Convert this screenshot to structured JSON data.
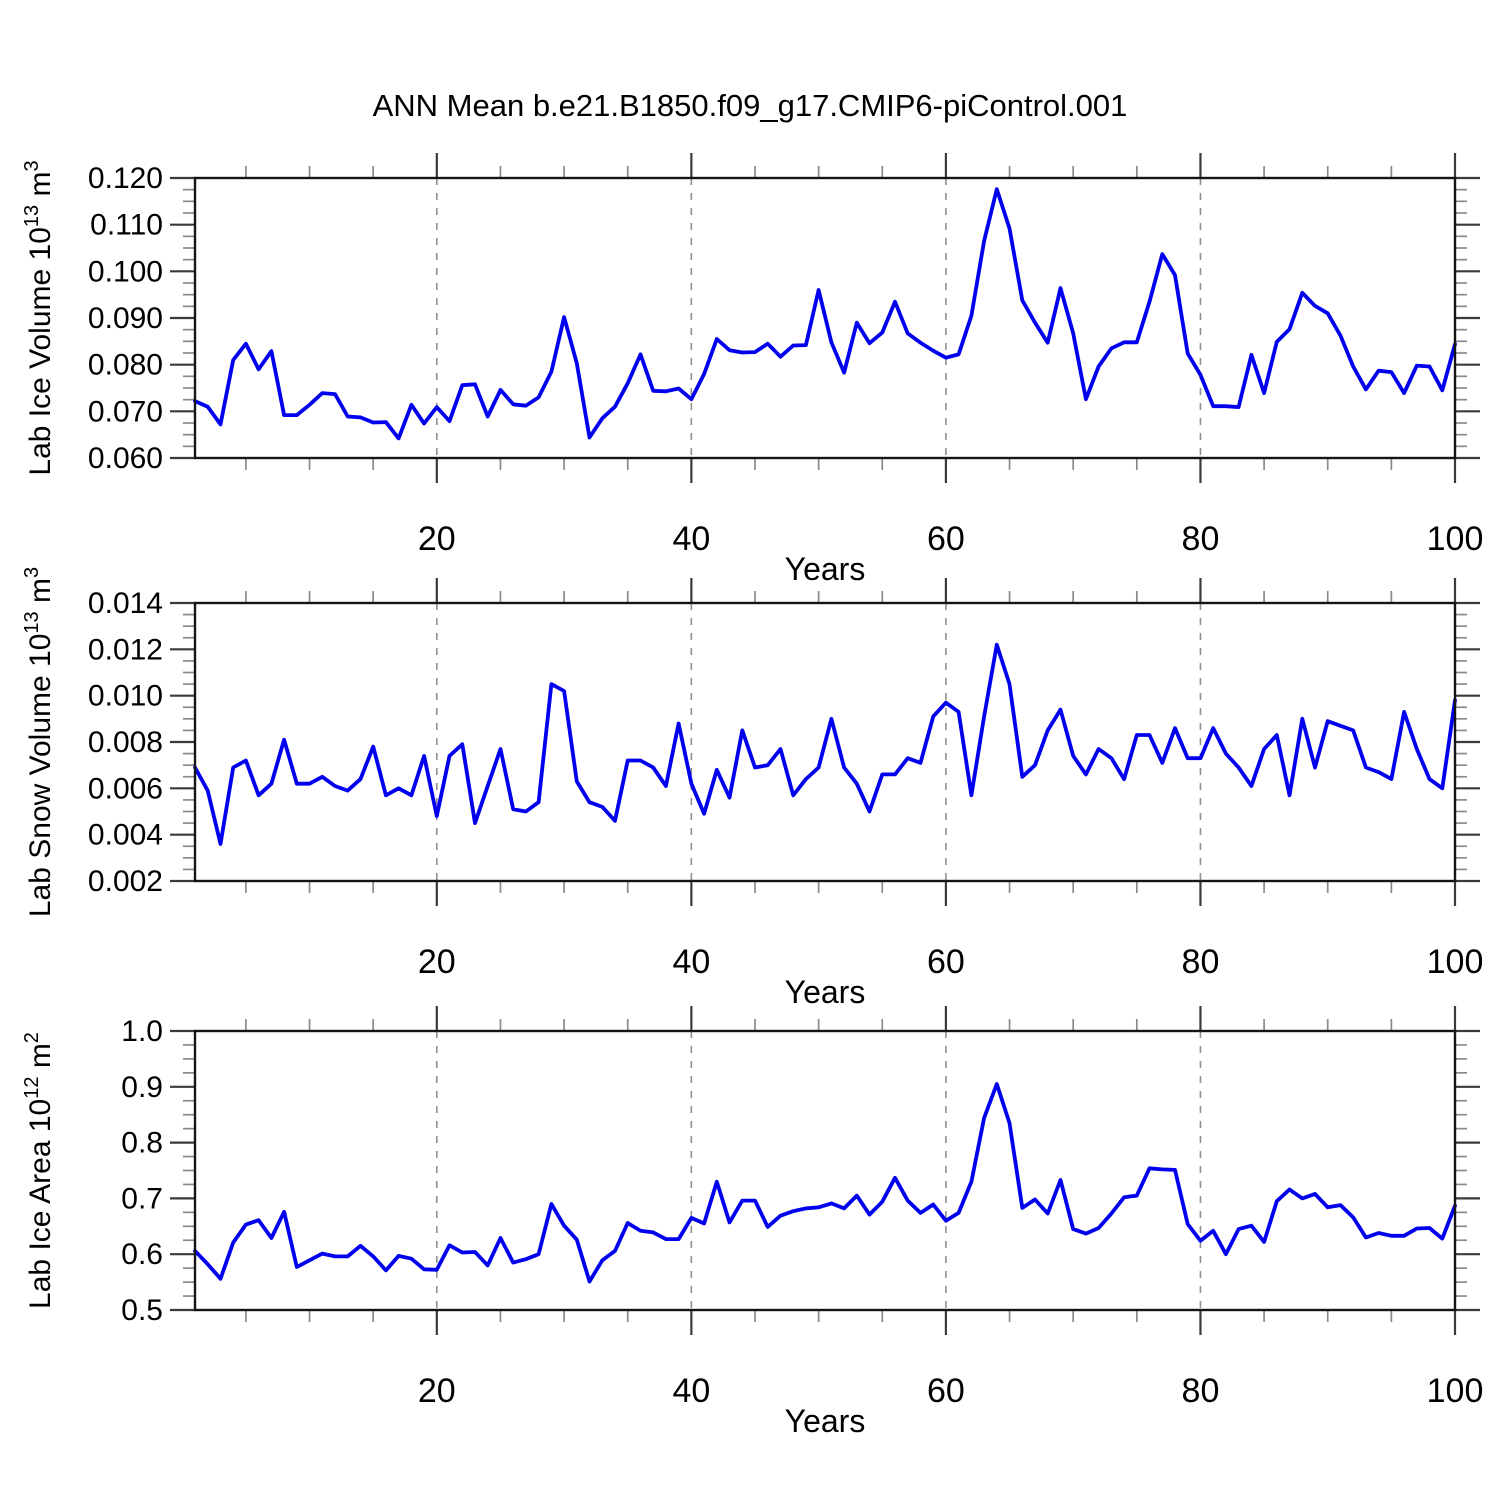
{
  "title": "ANN Mean b.e21.B1850.f09_g17.CMIP6-piControl.001",
  "line_color": "#0000EE",
  "chart_data": [
    {
      "type": "line",
      "panel_name": "panel-lab-ice-volume",
      "series_name": "lab-ice-volume-series",
      "title": "",
      "xlabel": "Years",
      "ylabel_plain": "Lab Ice Volume 10^13 m^3",
      "ylabel": {
        "text": "Lab Ice Volume",
        "scale": "10",
        "scale_exp": "13",
        "unit": "m",
        "unit_exp": "3"
      },
      "x_range": [
        1,
        100
      ],
      "x_start": 1,
      "x_step": 1,
      "x_major": [
        20,
        40,
        60,
        80,
        100
      ],
      "x_minor_step": 5,
      "grid_x": [
        20,
        40,
        60,
        80
      ],
      "y_range": [
        0.06,
        0.12
      ],
      "y_major_step": 0.01,
      "y_minor_div": 4,
      "y_decimals": 3,
      "values": [
        0.0722,
        0.071,
        0.0672,
        0.081,
        0.0845,
        0.079,
        0.0829,
        0.0692,
        0.0692,
        0.0714,
        0.0739,
        0.0737,
        0.0689,
        0.0687,
        0.0676,
        0.0677,
        0.0642,
        0.0714,
        0.0674,
        0.0709,
        0.0679,
        0.0756,
        0.0758,
        0.0689,
        0.0746,
        0.0715,
        0.0712,
        0.073,
        0.0785,
        0.0902,
        0.0803,
        0.0644,
        0.0685,
        0.071,
        0.076,
        0.0822,
        0.0744,
        0.0743,
        0.0749,
        0.0726,
        0.078,
        0.0855,
        0.0831,
        0.0826,
        0.0827,
        0.0845,
        0.0817,
        0.0841,
        0.0842,
        0.096,
        0.0848,
        0.0783,
        0.089,
        0.0846,
        0.0869,
        0.0935,
        0.0867,
        0.0847,
        0.083,
        0.0815,
        0.0822,
        0.0905,
        0.1065,
        0.1176,
        0.1092,
        0.0938,
        0.089,
        0.0847,
        0.0964,
        0.0867,
        0.0726,
        0.0796,
        0.0835,
        0.0848,
        0.0848,
        0.0935,
        0.1037,
        0.0992,
        0.0824,
        0.0778,
        0.0711,
        0.0711,
        0.0709,
        0.0821,
        0.0739,
        0.0849,
        0.0876,
        0.0954,
        0.0926,
        0.091,
        0.0862,
        0.0796,
        0.0747,
        0.0787,
        0.0784,
        0.0739,
        0.0798,
        0.0796,
        0.0745,
        0.0844
      ]
    },
    {
      "type": "line",
      "panel_name": "panel-lab-snow-volume",
      "series_name": "lab-snow-volume-series",
      "title": "",
      "xlabel": "Years",
      "ylabel_plain": "Lab Snow Volume 10^13 m^3",
      "ylabel": {
        "text": "Lab Snow Volume",
        "scale": "10",
        "scale_exp": "13",
        "unit": "m",
        "unit_exp": "3"
      },
      "x_range": [
        1,
        100
      ],
      "x_start": 1,
      "x_step": 1,
      "x_major": [
        20,
        40,
        60,
        80,
        100
      ],
      "x_minor_step": 5,
      "grid_x": [
        20,
        40,
        60,
        80
      ],
      "y_range": [
        0.002,
        0.014
      ],
      "y_major_step": 0.002,
      "y_minor_div": 4,
      "y_decimals": 3,
      "values": [
        0.0069,
        0.0059,
        0.0036,
        0.0069,
        0.0072,
        0.0057,
        0.0062,
        0.0081,
        0.0062,
        0.0062,
        0.0065,
        0.0061,
        0.0059,
        0.0064,
        0.0078,
        0.0057,
        0.006,
        0.0057,
        0.0074,
        0.0048,
        0.0074,
        0.0079,
        0.0045,
        0.0061,
        0.0077,
        0.0051,
        0.005,
        0.0054,
        0.0105,
        0.0102,
        0.0063,
        0.0054,
        0.0052,
        0.0046,
        0.0072,
        0.0072,
        0.0069,
        0.0061,
        0.0088,
        0.0062,
        0.0049,
        0.0068,
        0.0056,
        0.0085,
        0.0069,
        0.007,
        0.0077,
        0.0057,
        0.0064,
        0.0069,
        0.009,
        0.0069,
        0.0062,
        0.005,
        0.0066,
        0.0066,
        0.0073,
        0.0071,
        0.0091,
        0.0097,
        0.0093,
        0.0057,
        0.0091,
        0.0122,
        0.0105,
        0.0065,
        0.007,
        0.0085,
        0.0094,
        0.0074,
        0.0066,
        0.0077,
        0.0073,
        0.0064,
        0.0083,
        0.0083,
        0.0071,
        0.0086,
        0.0073,
        0.0073,
        0.0086,
        0.0075,
        0.0069,
        0.0061,
        0.0077,
        0.0083,
        0.0057,
        0.009,
        0.0069,
        0.0089,
        0.0087,
        0.0085,
        0.0069,
        0.0067,
        0.0064,
        0.0093,
        0.0077,
        0.0064,
        0.006,
        0.0098
      ]
    },
    {
      "type": "line",
      "panel_name": "panel-lab-ice-area",
      "series_name": "lab-ice-area-series",
      "title": "",
      "xlabel": "Years",
      "ylabel_plain": "Lab Ice Area 10^12 m^2",
      "ylabel": {
        "text": "Lab Ice Area",
        "scale": "10",
        "scale_exp": "12",
        "unit": "m",
        "unit_exp": "2"
      },
      "x_range": [
        1,
        100
      ],
      "x_start": 1,
      "x_step": 1,
      "x_major": [
        20,
        40,
        60,
        80,
        100
      ],
      "x_minor_step": 5,
      "grid_x": [
        20,
        40,
        60,
        80
      ],
      "y_range": [
        0.5,
        1.0
      ],
      "y_major_step": 0.1,
      "y_minor_div": 4,
      "y_decimals": 1,
      "values": [
        0.606,
        0.582,
        0.556,
        0.621,
        0.653,
        0.661,
        0.629,
        0.676,
        0.577,
        0.589,
        0.601,
        0.596,
        0.596,
        0.615,
        0.596,
        0.571,
        0.597,
        0.592,
        0.573,
        0.572,
        0.616,
        0.603,
        0.604,
        0.58,
        0.629,
        0.585,
        0.591,
        0.6,
        0.69,
        0.651,
        0.626,
        0.551,
        0.589,
        0.606,
        0.656,
        0.642,
        0.639,
        0.627,
        0.627,
        0.665,
        0.655,
        0.73,
        0.657,
        0.696,
        0.696,
        0.649,
        0.669,
        0.677,
        0.682,
        0.684,
        0.691,
        0.682,
        0.705,
        0.671,
        0.694,
        0.737,
        0.696,
        0.674,
        0.689,
        0.66,
        0.674,
        0.73,
        0.844,
        0.905,
        0.835,
        0.683,
        0.698,
        0.673,
        0.733,
        0.645,
        0.637,
        0.647,
        0.673,
        0.702,
        0.705,
        0.754,
        0.752,
        0.751,
        0.654,
        0.624,
        0.642,
        0.6,
        0.645,
        0.651,
        0.622,
        0.695,
        0.716,
        0.7,
        0.708,
        0.684,
        0.688,
        0.666,
        0.63,
        0.638,
        0.633,
        0.633,
        0.646,
        0.647,
        0.628,
        0.687
      ]
    }
  ]
}
